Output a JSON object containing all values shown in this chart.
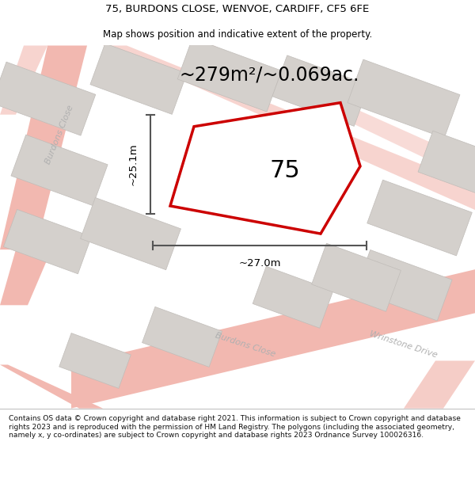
{
  "title_line1": "75, BURDONS CLOSE, WENVOE, CARDIFF, CF5 6FE",
  "title_line2": "Map shows position and indicative extent of the property.",
  "area_text": "~279m²/~0.069ac.",
  "property_number": "75",
  "dim_width": "~27.0m",
  "dim_height": "~25.1m",
  "footer_text": "Contains OS data © Crown copyright and database right 2021. This information is subject to Crown copyright and database rights 2023 and is reproduced with the permission of HM Land Registry. The polygons (including the associated geometry, namely x, y co-ordinates) are subject to Crown copyright and database rights 2023 Ordnance Survey 100026316.",
  "bg_color": "#ffffff",
  "map_bg": "#eeece8",
  "plot_edge_color": "#cc0000",
  "road_color": "#f2b8b0",
  "building_color": "#d4d0cc",
  "building_edge": "#c0bcb8",
  "dim_line_color": "#555555",
  "street_label_color": "#b0b0b0"
}
